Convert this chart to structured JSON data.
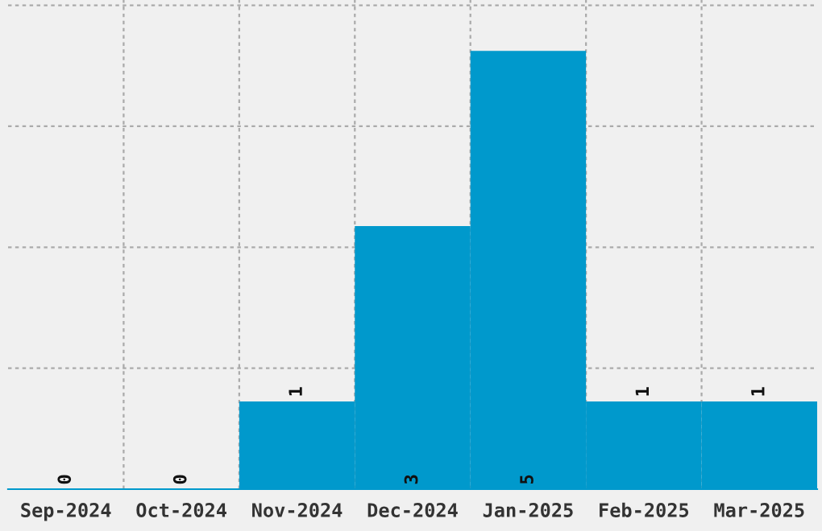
{
  "chart_data": {
    "type": "bar",
    "categories": [
      "Sep-2024",
      "Oct-2024",
      "Nov-2024",
      "Dec-2024",
      "Jan-2025",
      "Feb-2025",
      "Mar-2025"
    ],
    "values": [
      0,
      0,
      1,
      3,
      5,
      1,
      1
    ],
    "color": "#0099cc",
    "ylim": [
      0,
      5.58
    ],
    "yticks": [
      {
        "value": 1.38,
        "label": null
      },
      {
        "value": 2.76,
        "label": null
      },
      {
        "value": 4.14,
        "label": null
      },
      {
        "value": 5.52,
        "label": null
      }
    ],
    "tick_labels": "x",
    "grid": true,
    "data_labels": true
  }
}
